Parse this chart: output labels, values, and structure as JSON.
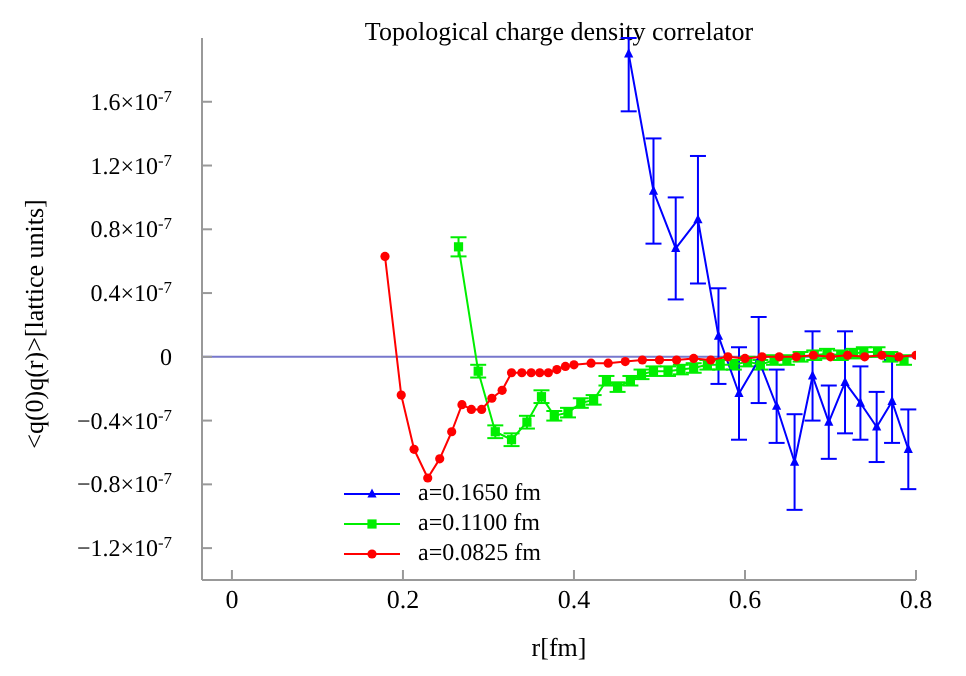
{
  "chart_data": {
    "type": "line",
    "title": "Topological charge density correlator",
    "xlabel": "r[fm]",
    "ylabel": "<q(0)q(r)>[lattice units]",
    "xlim": [
      -0.035,
      0.8
    ],
    "xticks": [
      0,
      0.2,
      0.4,
      0.6,
      0.8
    ],
    "ylim": [
      -1.4e-07,
      2e-07
    ],
    "yticks": [
      {
        "value": -1.2e-07,
        "label": "−1.2×10$^{-7}$"
      },
      {
        "value": -8e-08,
        "label": "−0.8×10$^{-7}$"
      },
      {
        "value": -4e-08,
        "label": "−0.4×10$^{-7}$"
      },
      0,
      {
        "value": 4e-08,
        "label": "0.4×10$^{-7}$"
      },
      {
        "value": 8e-08,
        "label": "0.8×10$^{-7}$"
      },
      {
        "value": 1.2e-07,
        "label": "1.2×10$^{-7}$"
      },
      {
        "value": 1.6e-07,
        "label": "1.6×10$^{-7}$"
      }
    ],
    "grid": false,
    "legend": "bottom",
    "line_style": "solid",
    "ref_lines": [
      {
        "axis": "y",
        "value": 0,
        "color": "#7777cc"
      }
    ],
    "series": [
      {
        "name": "a=0.1650 fm",
        "color": "#0000ff",
        "marker": "triangle",
        "x": [
          0.464,
          0.493,
          0.519,
          0.545,
          0.569,
          0.593,
          0.616,
          0.637,
          0.658,
          0.679,
          0.698,
          0.717,
          0.735,
          0.754,
          0.772,
          0.791
        ],
        "values": [
          1.9e-07,
          1.04e-07,
          6.8e-08,
          8.6e-08,
          1.3e-08,
          -2.3e-08,
          -2e-09,
          -3.1e-08,
          -6.6e-08,
          -1.2e-08,
          -4.1e-08,
          -1.6e-08,
          -2.9e-08,
          -4.4e-08,
          -2.8e-08,
          -5.8e-08
        ],
        "errors": [
          [
            1.54e-07,
            2e-07
          ],
          3.3e-08,
          3.2e-08,
          4e-08,
          3e-08,
          2.9e-08,
          2.7e-08,
          2.3e-08,
          3e-08,
          2.8e-08,
          2.3e-08,
          3.2e-08,
          2.3e-08,
          2.2e-08,
          2.6e-08,
          2.5e-08
        ]
      },
      {
        "name": "a=0.1100 fm",
        "color": "#00ee00",
        "marker": "square",
        "x": [
          0.265,
          0.288,
          0.308,
          0.327,
          0.345,
          0.362,
          0.377,
          0.393,
          0.408,
          0.423,
          0.438,
          0.451,
          0.466,
          0.479,
          0.493,
          0.51,
          0.525,
          0.54,
          0.556,
          0.571,
          0.587,
          0.603,
          0.618,
          0.634,
          0.649,
          0.665,
          0.681,
          0.696,
          0.712,
          0.727,
          0.739,
          0.755,
          0.77,
          0.786
        ],
        "values": [
          6.9e-08,
          -9e-09,
          -4.7e-08,
          -5.2e-08,
          -4.1e-08,
          -2.5e-08,
          -3.7e-08,
          -3.5e-08,
          -2.9e-08,
          -2.7e-08,
          -1.5e-08,
          -1.9e-08,
          -1.5e-08,
          -1.1e-08,
          -9e-09,
          -9e-09,
          -8e-09,
          -7e-09,
          -5e-09,
          -5e-09,
          -5e-09,
          -3e-09,
          -5e-09,
          -2e-09,
          -2e-09,
          0,
          1e-09,
          2e-09,
          1e-09,
          2e-09,
          3e-09,
          3e-09,
          0,
          -2e-09
        ],
        "errors": [
          6e-09,
          4e-09,
          4e-09,
          4e-09,
          4e-09,
          4e-09,
          3e-09,
          3e-09,
          3e-09,
          3e-09,
          3e-09,
          3e-09,
          3e-09,
          3e-09,
          3e-09,
          3e-09,
          3e-09,
          3e-09,
          3e-09,
          3e-09,
          3e-09,
          3e-09,
          3e-09,
          3e-09,
          3e-09,
          3e-09,
          3e-09,
          3e-09,
          3e-09,
          3e-09,
          3e-09,
          3e-09,
          3e-09,
          3e-09
        ]
      },
      {
        "name": "a=0.0825 fm",
        "color": "#ff0000",
        "marker": "circle",
        "x": [
          0.179,
          0.198,
          0.213,
          0.229,
          0.243,
          0.257,
          0.269,
          0.28,
          0.292,
          0.304,
          0.316,
          0.327,
          0.339,
          0.35,
          0.36,
          0.37,
          0.38,
          0.39,
          0.4,
          0.42,
          0.44,
          0.46,
          0.48,
          0.5,
          0.52,
          0.54,
          0.56,
          0.58,
          0.6,
          0.62,
          0.64,
          0.66,
          0.68,
          0.7,
          0.72,
          0.74,
          0.76,
          0.78,
          0.8
        ],
        "values": [
          6.3e-08,
          -2.4e-08,
          -5.8e-08,
          -7.6e-08,
          -6.4e-08,
          -4.7e-08,
          -3e-08,
          -3.3e-08,
          -3.3e-08,
          -2.6e-08,
          -2.1e-08,
          -1e-08,
          -1e-08,
          -1e-08,
          -1e-08,
          -1e-08,
          -8e-09,
          -6e-09,
          -5e-09,
          -4e-09,
          -4e-09,
          -3e-09,
          -2e-09,
          -2e-09,
          -2e-09,
          -1e-09,
          -2e-09,
          0,
          -1e-09,
          0,
          0,
          0,
          1e-09,
          0,
          1e-09,
          0,
          1e-09,
          0,
          1e-09
        ]
      }
    ]
  }
}
